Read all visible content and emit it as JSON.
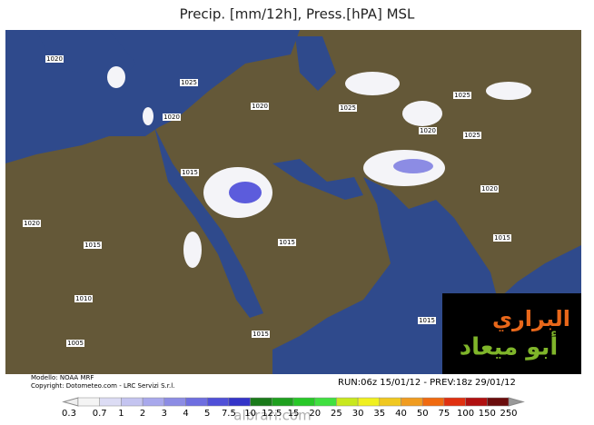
{
  "header": {
    "title": "Precip. [mm/12h], Press.[hPA] MSL"
  },
  "isobars": [
    "1020",
    "1025",
    "1020",
    "1020",
    "1025",
    "1025",
    "1020",
    "1025",
    "1015",
    "1020",
    "1015",
    "1015",
    "1020",
    "1015",
    "1010",
    "1015",
    "1005",
    "1015"
  ],
  "footer": {
    "model": "Modello: NOAA MRF",
    "copyright": "Copyright: Dotometeo.com - LRC Servizi S.r.l.",
    "run": "RUN:06z 15/01/12 - PREV:18z 29/01/12"
  },
  "watermark": "albrari.com",
  "logo": {
    "line1": "البراري",
    "line2": "أبو ميعاد"
  },
  "scale": {
    "labels": [
      "0.3",
      "0.7",
      "1",
      "2",
      "3",
      "4",
      "5",
      "7.5",
      "10",
      "12.5",
      "15",
      "20",
      "25",
      "30",
      "35",
      "40",
      "50",
      "75",
      "100",
      "150",
      "250"
    ],
    "colors": [
      "#f4f4f4",
      "#dcdcf4",
      "#c4c4f0",
      "#a8a8ec",
      "#8c8ce4",
      "#6e6ee0",
      "#5050d8",
      "#3434c8",
      "#1a7a1a",
      "#1fa01f",
      "#28c828",
      "#40e040",
      "#c8e81e",
      "#f0f020",
      "#f0c820",
      "#f09c20",
      "#f06a10",
      "#e03010",
      "#b01010",
      "#6a0c0c"
    ]
  }
}
